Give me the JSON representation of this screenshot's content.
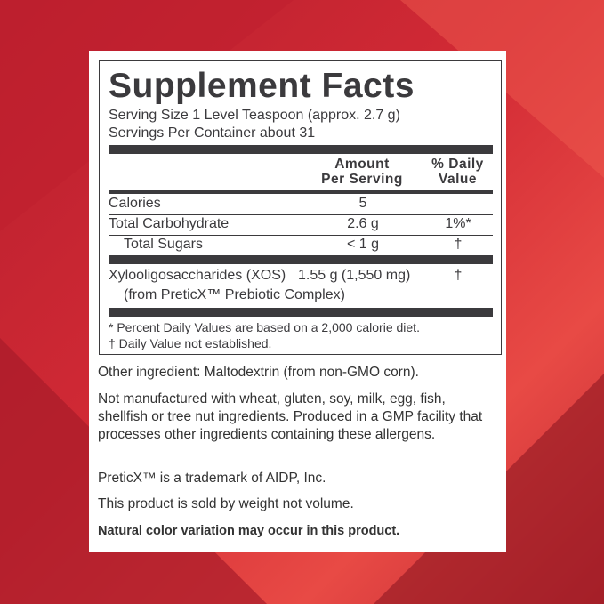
{
  "colors": {
    "background": "#d22a35",
    "text": "#3b3a3d"
  },
  "title": "Supplement Facts",
  "serving_size": "Serving Size 1 Level Teaspoon (approx. 2.7 g)",
  "servings_per_container": "Servings Per Container about 31",
  "headers": {
    "amount_1": "Amount",
    "amount_2": "Per Serving",
    "dv_1": "% Daily",
    "dv_2": "Value"
  },
  "rows": [
    {
      "label": "Calories",
      "amount": "5",
      "dv": ""
    },
    {
      "label": "Total Carbohydrate",
      "amount": "2.6 g",
      "dv": "1%*"
    },
    {
      "label": "Total Sugars",
      "amount": "< 1 g",
      "dv": "†"
    }
  ],
  "xos": {
    "label": "Xylooligosaccharides (XOS)",
    "amount": "1.55 g (1,550 mg)",
    "dv": "†",
    "sub": "(from PreticX™ Prebiotic Complex)"
  },
  "footnotes": [
    "* Percent Daily Values are based on a 2,000 calorie diet.",
    "† Daily Value not established."
  ],
  "notes": [
    "Other ingredient: Maltodextrin (from non-GMO corn).",
    "Not manufactured with wheat, gluten, soy, milk, egg, fish, shellfish or tree nut ingredients. Produced in a GMP facility that processes other ingredients containing these allergens.",
    "PreticX™ is a trademark of AIDP, Inc.",
    "This product is sold by weight not volume.",
    "Natural color variation may occur in this product."
  ]
}
